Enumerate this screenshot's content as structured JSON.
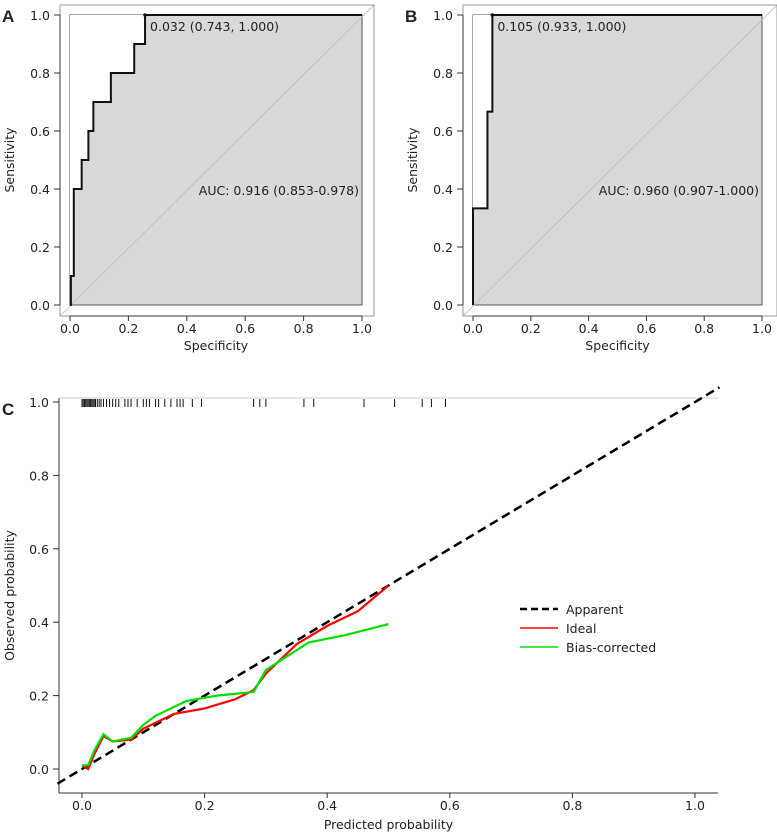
{
  "chart_data": [
    {
      "type": "line",
      "panel_label": "A",
      "xlabel": "Specificity",
      "ylabel": "Sensitivity",
      "xlim": [
        0,
        1
      ],
      "ylim": [
        0,
        1
      ],
      "xticks": [
        "0.0",
        "0.2",
        "0.4",
        "0.6",
        "0.8",
        "1.0"
      ],
      "yticks": [
        "0.0",
        "0.2",
        "0.4",
        "0.6",
        "0.8",
        "1.0"
      ],
      "grid": false,
      "fill_color": "#d9d9d9",
      "curve": {
        "x": [
          0,
          0.003,
          0.003,
          0.013,
          0.013,
          0.04,
          0.04,
          0.063,
          0.063,
          0.08,
          0.08,
          0.14,
          0.14,
          0.22,
          0.22,
          0.257,
          0.257,
          1.0
        ],
        "y": [
          0,
          0,
          0.1,
          0.1,
          0.4,
          0.4,
          0.5,
          0.5,
          0.6,
          0.6,
          0.7,
          0.7,
          0.8,
          0.8,
          0.9,
          0.9,
          1.0,
          1.0
        ]
      },
      "threshold_point": {
        "x": 0.257,
        "y": 1.0
      },
      "threshold_label": "0.032 (0.743, 1.000)",
      "auc_label": "AUC: 0.916 (0.853-0.978)"
    },
    {
      "type": "line",
      "panel_label": "B",
      "xlabel": "Specificity",
      "ylabel": "Sensitivity",
      "xlim": [
        0,
        1
      ],
      "ylim": [
        0,
        1
      ],
      "xticks": [
        "0.0",
        "0.2",
        "0.4",
        "0.6",
        "0.8",
        "1.0"
      ],
      "yticks": [
        "0.0",
        "0.2",
        "0.4",
        "0.6",
        "0.8",
        "1.0"
      ],
      "grid": false,
      "fill_color": "#d9d9d9",
      "curve": {
        "x": [
          0,
          0,
          0.05,
          0.05,
          0.067,
          0.067,
          1.0
        ],
        "y": [
          0,
          0.333,
          0.333,
          0.667,
          0.667,
          1.0,
          1.0
        ]
      },
      "threshold_point": {
        "x": 0.067,
        "y": 1.0
      },
      "threshold_label": "0.105 (0.933, 1.000)",
      "auc_label": "AUC: 0.960 (0.907-1.000)"
    },
    {
      "type": "line",
      "panel_label": "C",
      "xlabel": "Predicted probability",
      "ylabel": "Observed probability",
      "xlim": [
        -0.04,
        1.04
      ],
      "ylim": [
        -0.04,
        1.04
      ],
      "xticks": [
        "0.0",
        "0.2",
        "0.4",
        "0.6",
        "0.8",
        "1.0"
      ],
      "yticks": [
        "0.0",
        "0.2",
        "0.4",
        "0.6",
        "0.8",
        "1.0"
      ],
      "grid": false,
      "legend_position": "right",
      "series": [
        {
          "name": "Apparent",
          "color": "#000000",
          "dash": true,
          "x": [
            -0.04,
            1.04
          ],
          "y": [
            -0.04,
            1.04
          ]
        },
        {
          "name": "Ideal",
          "color": "#ff0000",
          "x": [
            0,
            0.01,
            0.02,
            0.035,
            0.05,
            0.08,
            0.1,
            0.15,
            0.2,
            0.25,
            0.28,
            0.3,
            0.35,
            0.4,
            0.45,
            0.5
          ],
          "y": [
            0.01,
            0.0,
            0.04,
            0.09,
            0.075,
            0.08,
            0.11,
            0.15,
            0.165,
            0.19,
            0.215,
            0.26,
            0.34,
            0.39,
            0.43,
            0.5
          ]
        },
        {
          "name": "Bias-corrected",
          "color": "#00e000",
          "x": [
            0,
            0.01,
            0.02,
            0.035,
            0.05,
            0.08,
            0.1,
            0.12,
            0.17,
            0.22,
            0.28,
            0.3,
            0.37,
            0.43,
            0.5
          ],
          "y": [
            0.01,
            0.01,
            0.05,
            0.095,
            0.075,
            0.085,
            0.12,
            0.145,
            0.185,
            0.2,
            0.21,
            0.27,
            0.345,
            0.365,
            0.395
          ]
        }
      ],
      "rug": [
        0,
        0.002,
        0.004,
        0.006,
        0.008,
        0.01,
        0.012,
        0.014,
        0.016,
        0.018,
        0.02,
        0.022,
        0.025,
        0.028,
        0.031,
        0.035,
        0.04,
        0.045,
        0.05,
        0.055,
        0.06,
        0.07,
        0.075,
        0.08,
        0.09,
        0.1,
        0.105,
        0.11,
        0.12,
        0.125,
        0.135,
        0.145,
        0.155,
        0.16,
        0.165,
        0.18,
        0.195,
        0.28,
        0.29,
        0.3,
        0.362,
        0.378,
        0.46,
        0.51,
        0.555,
        0.57,
        0.593
      ]
    }
  ]
}
